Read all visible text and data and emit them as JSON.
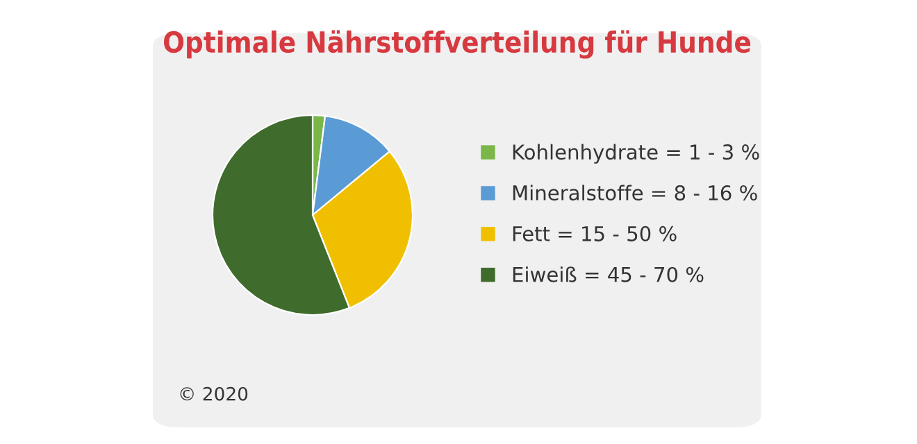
{
  "chart_data": {
    "type": "pie",
    "title": "Optimale Nährstoffverteilung für Hunde",
    "categories": [
      "Kohlenhydrate = 1 - 3 %",
      "Mineralstoffe = 8 - 16 %",
      "Fett = 15 - 50 %",
      "Eiweiß = 45 - 70 %"
    ],
    "values": [
      2,
      12,
      30,
      56
    ],
    "colors": [
      "#7ab648",
      "#5b9bd5",
      "#f0c000",
      "#3f6b2c"
    ],
    "legend": "right",
    "annotations": [
      "© 2020"
    ]
  }
}
